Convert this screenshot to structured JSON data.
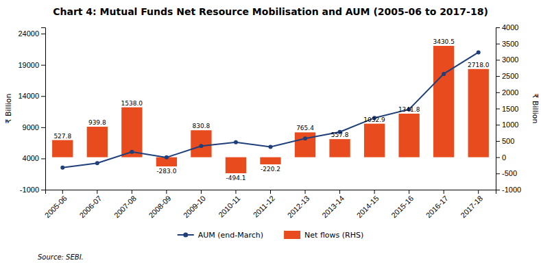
{
  "chart_data": {
    "type": "bar",
    "title": "Chart 4: Mutual Funds Net Resource Mobilisation and AUM (2005-06 to 2017-18)",
    "source": "Source: SEBI.",
    "categories": [
      "2005-06",
      "2006-07",
      "2007-08",
      "2008-09",
      "2009-10",
      "2010-11",
      "2011-12",
      "2012-13",
      "2013-14",
      "2014-15",
      "2015-16",
      "2016-17",
      "2017-18"
    ],
    "series": [
      {
        "name": "AUM (end-March)",
        "type": "line",
        "color": "#1f3f7a",
        "marker": "circle",
        "values": [
          2550,
          3260,
          5050,
          4170,
          6000,
          6600,
          5870,
          7200,
          8250,
          10500,
          11875,
          17550,
          21000
        ]
      },
      {
        "name": "Net flows (RHS)",
        "type": "bar",
        "axis": "y2",
        "color": "#e84c1e",
        "data_labels": true,
        "values": [
          527.8,
          939.8,
          1538.0,
          -283.0,
          830.8,
          -494.1,
          -220.2,
          765.4,
          557.8,
          1032.9,
          1341.8,
          3430.5,
          2718.0
        ],
        "value_labels": [
          "527.8",
          "939.8",
          "1538.0",
          "-283.0",
          "830.8",
          "-494.1",
          "-220.2",
          "765.4",
          "557.8",
          "1032.9",
          "1341.8",
          "3430.5",
          "2718.0"
        ]
      }
    ],
    "ylim": [
      -1000,
      25000
    ],
    "yticks": [
      -1000,
      4000,
      9000,
      14000,
      19000,
      24000
    ],
    "y2lim": [
      -1000,
      4000
    ],
    "y2ticks": [
      -1000,
      -500,
      0,
      500,
      1000,
      1500,
      2000,
      2500,
      3000,
      3500,
      4000
    ],
    "ylabel": "₹ Billion",
    "y2label": "₹ Billion",
    "grid": false,
    "legend": "bottom"
  }
}
